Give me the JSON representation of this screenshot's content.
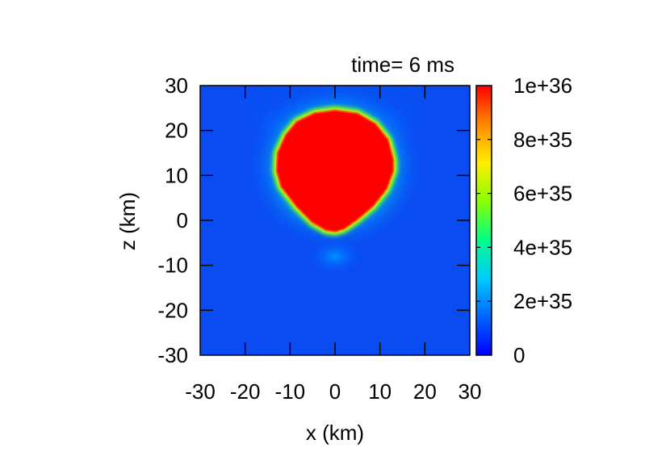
{
  "chart_data": {
    "type": "heatmap",
    "title": "time= 6 ms",
    "xlabel": "x (km)",
    "ylabel": "z (km)",
    "xlim": [
      -30,
      30
    ],
    "ylim": [
      -30,
      30
    ],
    "xticks": [
      -30,
      -20,
      -10,
      0,
      10,
      20,
      30
    ],
    "yticks": [
      -30,
      -20,
      -10,
      0,
      10,
      20,
      30
    ],
    "xtick_labels": [
      "-30",
      "-20",
      "-10",
      "0",
      "10",
      "20",
      "30"
    ],
    "ytick_labels": [
      "-30",
      "-20",
      "-10",
      "0",
      "10",
      "20",
      "30"
    ],
    "colorbar": {
      "range": [
        0,
        1e+36
      ],
      "ticks": [
        0,
        2e+35,
        4e+35,
        6e+35,
        8e+35,
        1e+36
      ],
      "tick_labels": [
        "0",
        "2e+35",
        "4e+35",
        "6e+35",
        "8e+35",
        "1e+36"
      ]
    },
    "colormap": [
      "#0000ff",
      "#0066ff",
      "#00ccff",
      "#00ff88",
      "#88ff00",
      "#ffee00",
      "#ff8800",
      "#ff0000"
    ],
    "features": [
      {
        "shape": "saturated-blob",
        "x_range": [
          -13,
          13
        ],
        "z_range": [
          -2.5,
          24.5
        ],
        "value": 1e+36
      },
      {
        "shape": "halo",
        "x_range": [
          -17,
          17
        ],
        "z_range": [
          -4,
          28
        ],
        "value": 4e+35
      },
      {
        "shape": "faint-bump",
        "x": 0,
        "z": -8,
        "value": 1e+35
      }
    ],
    "background_value": 3e+34,
    "grid": false,
    "legend": "none"
  }
}
